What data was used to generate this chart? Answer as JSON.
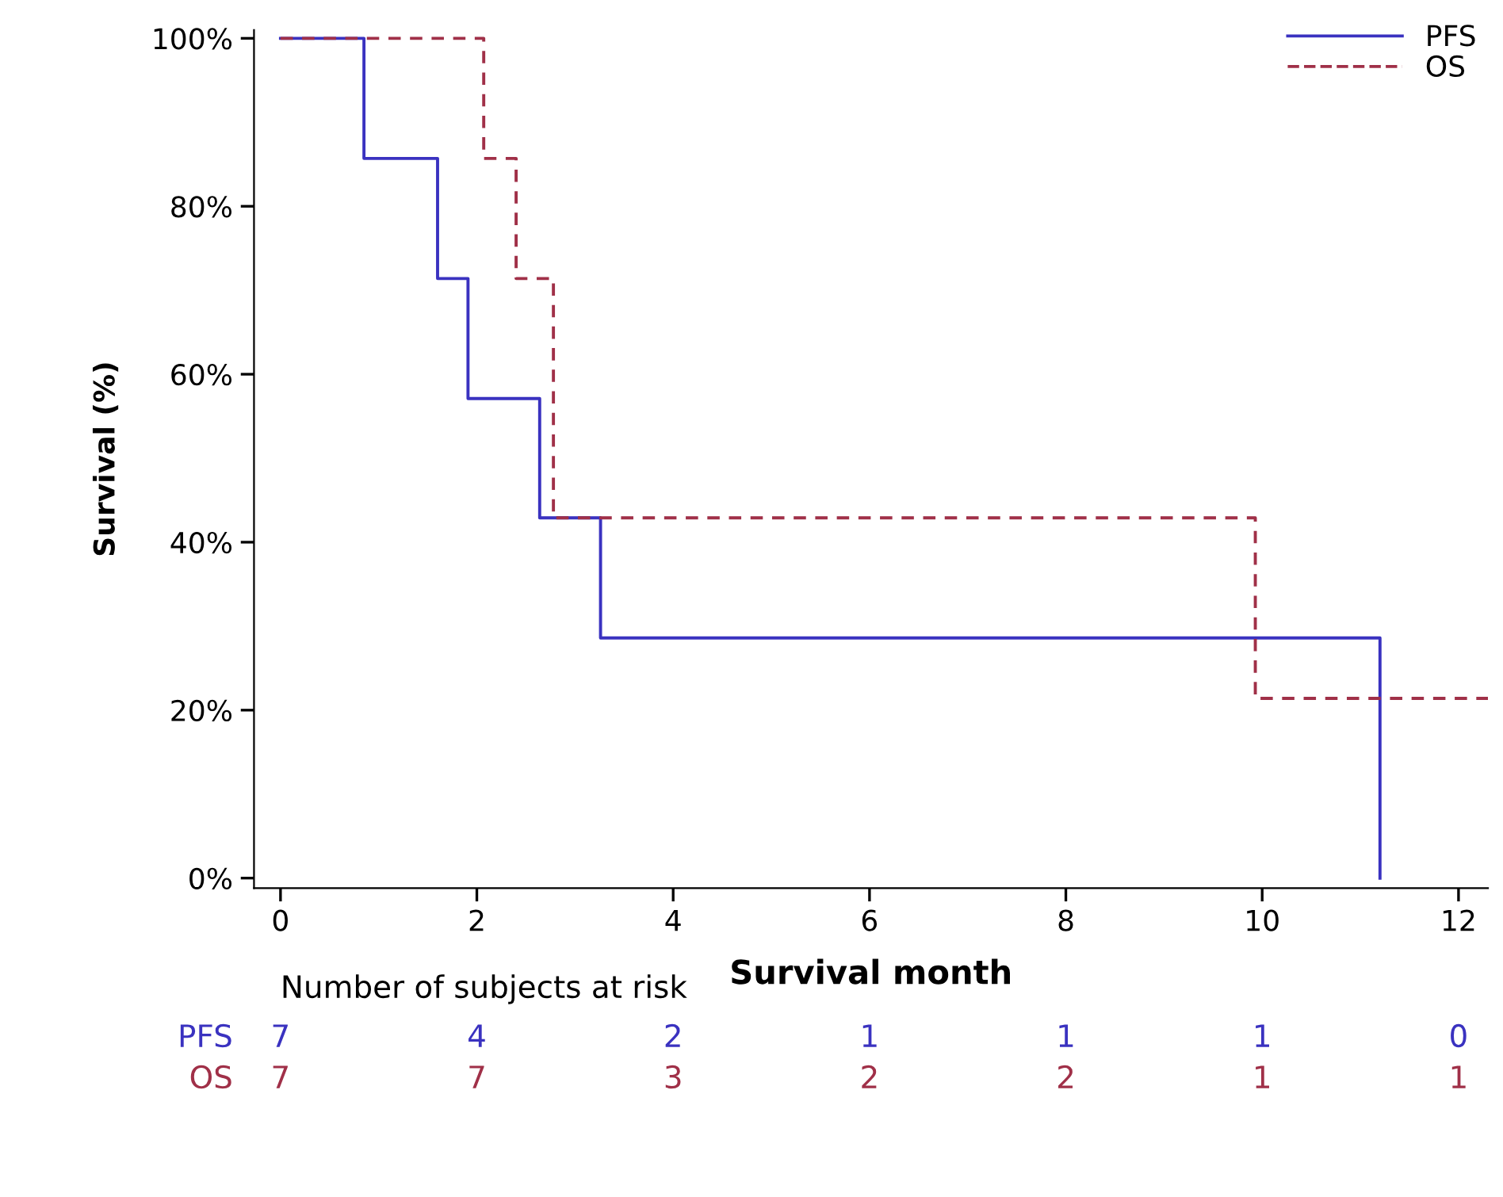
{
  "chart_data": {
    "type": "step",
    "xlabel": "Survival month",
    "ylabel": "Survival (%)",
    "xlim": [
      -0.27,
      12.3
    ],
    "xticks": [
      0,
      2,
      4,
      6,
      8,
      10,
      12
    ],
    "ylim": [
      -1.2,
      101
    ],
    "yticks": [
      {
        "value": 0,
        "label": "0%"
      },
      {
        "value": 20,
        "label": "20%"
      },
      {
        "value": 40,
        "label": "40%"
      },
      {
        "value": 60,
        "label": "60%"
      },
      {
        "value": 80,
        "label": "80%"
      },
      {
        "value": 100,
        "label": "100%"
      }
    ],
    "grid": false,
    "legend": "top right",
    "series": [
      {
        "name": "PFS",
        "color": "#3a32c0",
        "line_style": "solid",
        "x": [
          0,
          0.85,
          1.6,
          1.91,
          2.64,
          3.26,
          11.2
        ],
        "values": [
          100,
          85.7,
          71.4,
          57.1,
          42.9,
          28.6,
          0
        ]
      },
      {
        "name": "OS",
        "color": "#a03048",
        "line_style": "dashed",
        "x": [
          0,
          2.07,
          2.4,
          2.78,
          9.93,
          12.3
        ],
        "values": [
          100,
          85.7,
          71.4,
          42.9,
          21.4,
          21.4
        ]
      }
    ],
    "annotations": [
      "Number of subjects at risk",
      "7",
      "4",
      "2",
      "1",
      "1",
      "1",
      "0",
      "7",
      "7",
      "3",
      "2",
      "2",
      "1",
      "1"
    ]
  }
}
